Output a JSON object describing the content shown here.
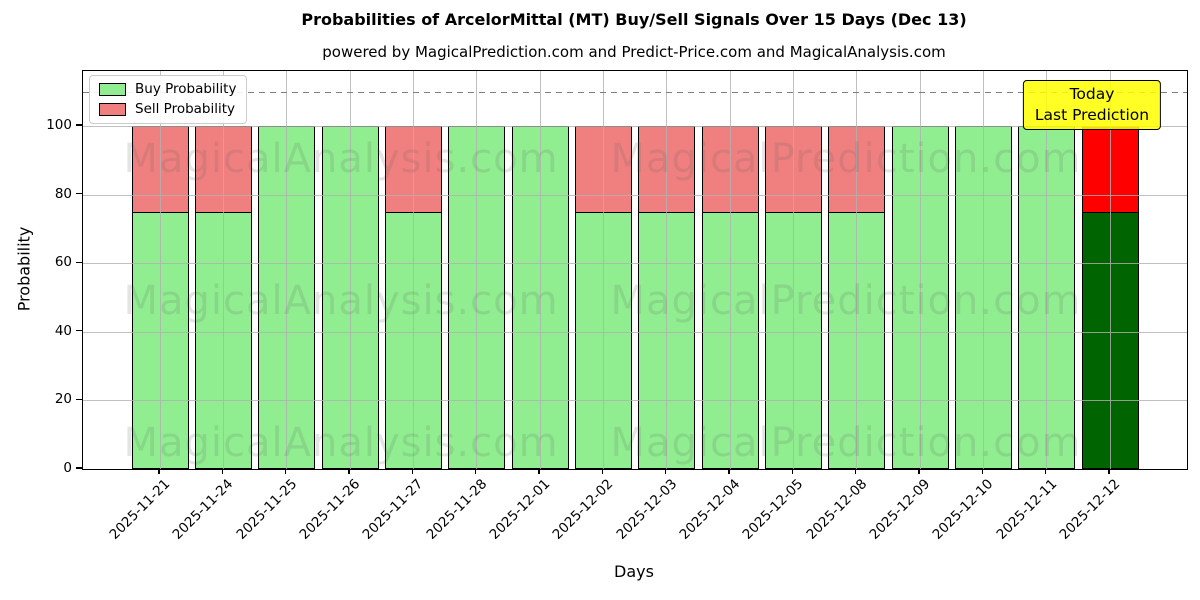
{
  "chart_data": {
    "type": "bar",
    "stacked": true,
    "title": "Probabilities of ArcelorMittal (MT) Buy/Sell Signals Over 15 Days (Dec 13)",
    "subtitle": "powered by MagicalPrediction.com and Predict-Price.com and MagicalAnalysis.com",
    "xlabel": "Days",
    "ylabel": "Probability",
    "ylim": [
      0,
      116
    ],
    "yticks": [
      0,
      20,
      40,
      60,
      80,
      100
    ],
    "grid": true,
    "legend_position": "upper left",
    "categories": [
      "2025-11-21",
      "2025-11-24",
      "2025-11-25",
      "2025-11-26",
      "2025-11-27",
      "2025-11-28",
      "2025-12-01",
      "2025-12-02",
      "2025-12-03",
      "2025-12-04",
      "2025-12-05",
      "2025-12-08",
      "2025-12-09",
      "2025-12-10",
      "2025-12-11",
      "2025-12-12"
    ],
    "series": [
      {
        "name": "Buy Probability",
        "color": "#90ee90",
        "today_color": "#006400",
        "values": [
          75,
          75,
          100,
          100,
          75,
          100,
          100,
          75,
          75,
          75,
          75,
          75,
          100,
          100,
          100,
          75
        ]
      },
      {
        "name": "Sell Probability",
        "color": "#f08080",
        "today_color": "#ff0000",
        "values": [
          25,
          25,
          0,
          0,
          25,
          0,
          0,
          25,
          25,
          25,
          25,
          25,
          0,
          0,
          0,
          25
        ]
      }
    ],
    "today_index": 15,
    "dashed_line_y": 110,
    "annotation": {
      "lines": [
        "Today",
        "Last Prediction"
      ],
      "bg": "rgba(255,255,0,0.85)",
      "border": "#000000"
    },
    "watermarks": [
      "MagicalAnalysis.com",
      "MagicalPrediction.com"
    ],
    "colors": {
      "bar_edge": "#000000",
      "dashed": "#7f7f7f",
      "grid": "#b0b0b0",
      "watermark": "#606060",
      "background": "#ffffff"
    }
  }
}
